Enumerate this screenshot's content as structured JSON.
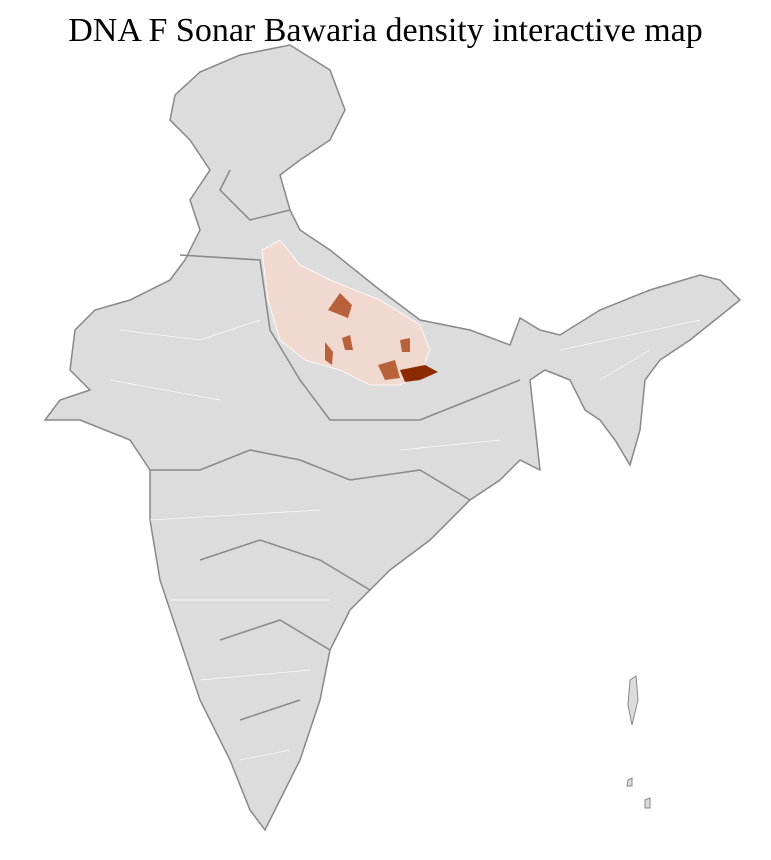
{
  "title": "DNA F Sonar Bawaria density interactive map",
  "colors": {
    "land": "#dcdcdc",
    "border": "#888888",
    "district_lines": "#ffffff",
    "low_density": "#f1d9cf",
    "medium_density": "#b8613a",
    "high_density": "#8b2a00"
  },
  "highlighted_region": "Uttar Pradesh"
}
